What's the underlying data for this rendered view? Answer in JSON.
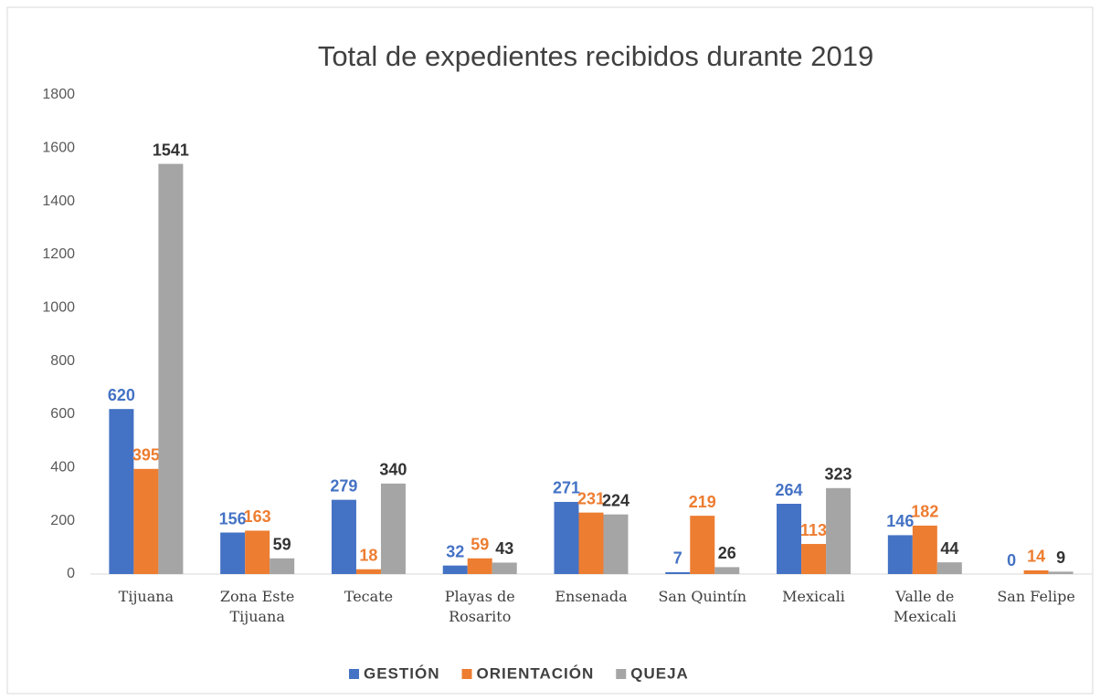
{
  "chart_data": {
    "type": "bar",
    "title": "Total de expedientes recibidos durante 2019",
    "categories": [
      "Tijuana",
      "Zona Este Tijuana",
      "Tecate",
      "Playas de Rosarito",
      "Ensenada",
      "San Quintín",
      "Mexicali",
      "Valle de Mexicali",
      "San Felipe"
    ],
    "series": [
      {
        "name": "GESTIÓN",
        "color": "#4472c4",
        "values": [
          620,
          156,
          279,
          32,
          271,
          7,
          264,
          146,
          0
        ]
      },
      {
        "name": "ORIENTACIÓN",
        "color": "#ed7d31",
        "values": [
          395,
          163,
          18,
          59,
          231,
          219,
          113,
          182,
          14
        ]
      },
      {
        "name": "QUEJA",
        "color": "#a5a5a5",
        "values": [
          1541,
          59,
          340,
          43,
          224,
          26,
          323,
          44,
          9
        ]
      }
    ],
    "ylim": [
      0,
      1800
    ],
    "yticks": [
      0,
      200,
      400,
      600,
      800,
      1000,
      1200,
      1400,
      1600,
      1800
    ],
    "grid": false,
    "legend": "bottom"
  }
}
